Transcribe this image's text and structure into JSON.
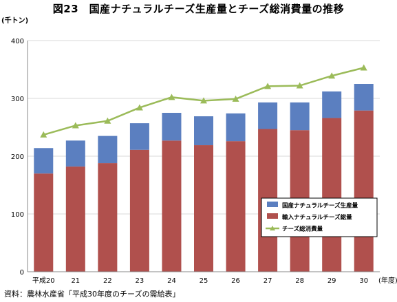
{
  "title": "図23　国産ナチュラルチーズ生産量とチーズ総消費量の推移",
  "source": "資料：農林水産省「平成30年度のチーズの需給表」",
  "chart_data": {
    "type": "bar",
    "stacked": true,
    "categories": [
      "平成20",
      "21",
      "22",
      "23",
      "24",
      "25",
      "26",
      "27",
      "28",
      "29",
      "30"
    ],
    "x_unit": "(年度)",
    "y_unit": "(千トン)",
    "ylim": [
      0,
      400
    ],
    "yticks": [
      0,
      100,
      200,
      300,
      400
    ],
    "grid": true,
    "legend_position": "bottom-right",
    "series": [
      {
        "name": "輸入ナチュラルチーズ総量",
        "type": "bar",
        "color": "#b0504d",
        "values": [
          170,
          182,
          188,
          211,
          227,
          219,
          226,
          247,
          245,
          266,
          279
        ]
      },
      {
        "name": "国産ナチュラルチーズ生産量",
        "type": "bar",
        "color": "#5b7fc0",
        "values": [
          44,
          45,
          47,
          46,
          48,
          50,
          48,
          46,
          48,
          46,
          46
        ]
      },
      {
        "name": "チーズ総消費量",
        "type": "line",
        "color": "#9bbb59",
        "values": [
          237,
          253,
          261,
          284,
          302,
          296,
          299,
          321,
          322,
          339,
          353
        ]
      }
    ],
    "legend_order": [
      "国産ナチュラルチーズ生産量",
      "輸入ナチュラルチーズ総量",
      "チーズ総消費量"
    ]
  }
}
